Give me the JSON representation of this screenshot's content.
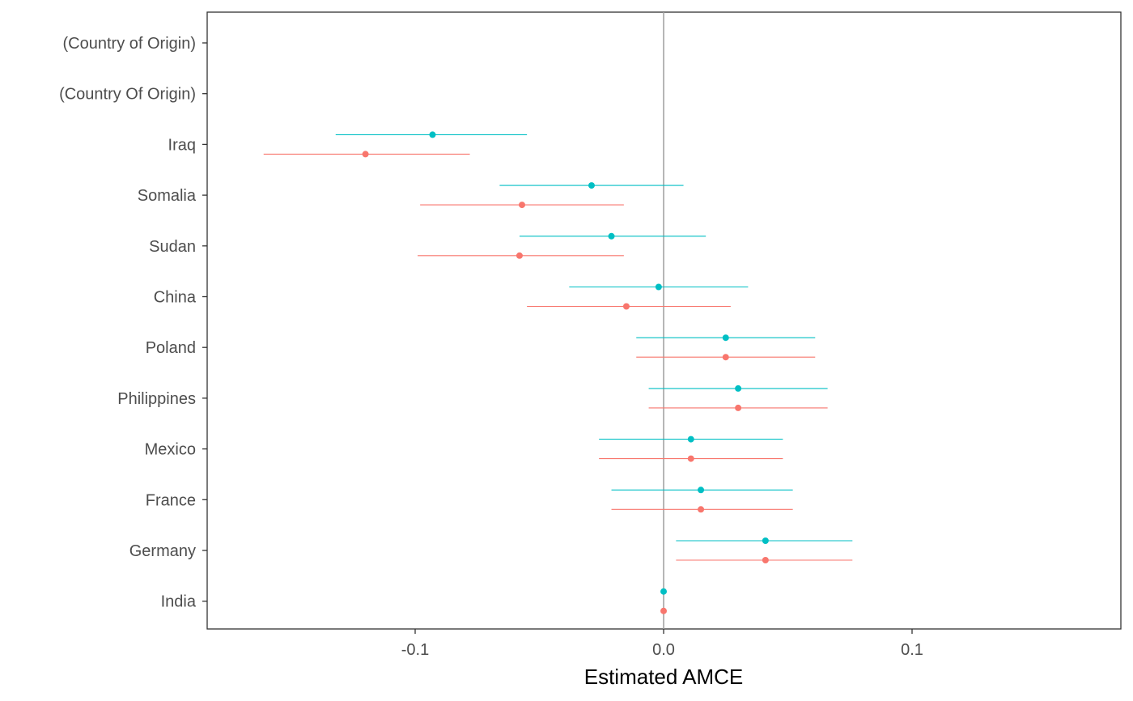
{
  "chart_data": {
    "type": "scatter",
    "subtype": "dot-and-whisker",
    "title": "",
    "xlabel": "Estimated AMCE",
    "ylabel": "",
    "xlim": [
      -0.183,
      0.185
    ],
    "x_ticks": [
      {
        "value": -0.1,
        "label": "-0.1"
      },
      {
        "value": 0.0,
        "label": "0.0"
      },
      {
        "value": 0.1,
        "label": "0.1"
      }
    ],
    "reference_line": 0.0,
    "grid": false,
    "legend": "none",
    "categories": [
      "(Country of Origin)",
      "(Country Of Origin)",
      "Iraq",
      "Somalia",
      "Sudan",
      "China",
      "Poland",
      "Philippines",
      "Mexico",
      "France",
      "Germany",
      "India"
    ],
    "series": [
      {
        "color": "#00BFC4",
        "estimates": [
          null,
          null,
          -0.093,
          -0.029,
          -0.021,
          -0.002,
          0.025,
          0.03,
          0.011,
          0.015,
          0.041,
          0.0
        ],
        "lower": [
          null,
          null,
          -0.132,
          -0.066,
          -0.058,
          -0.038,
          -0.011,
          -0.006,
          -0.026,
          -0.021,
          0.005,
          0.0
        ],
        "upper": [
          null,
          null,
          -0.055,
          0.008,
          0.017,
          0.034,
          0.061,
          0.066,
          0.048,
          0.052,
          0.076,
          0.0
        ]
      },
      {
        "color": "#F8766D",
        "estimates": [
          null,
          null,
          -0.12,
          -0.057,
          -0.058,
          -0.015,
          0.025,
          0.03,
          0.011,
          0.015,
          0.041,
          0.0
        ],
        "lower": [
          null,
          null,
          -0.161,
          -0.098,
          -0.099,
          -0.055,
          -0.011,
          -0.006,
          -0.026,
          -0.021,
          0.005,
          0.0
        ],
        "upper": [
          null,
          null,
          -0.078,
          -0.016,
          -0.016,
          0.027,
          0.061,
          0.066,
          0.048,
          0.052,
          0.076,
          0.0
        ]
      }
    ]
  }
}
